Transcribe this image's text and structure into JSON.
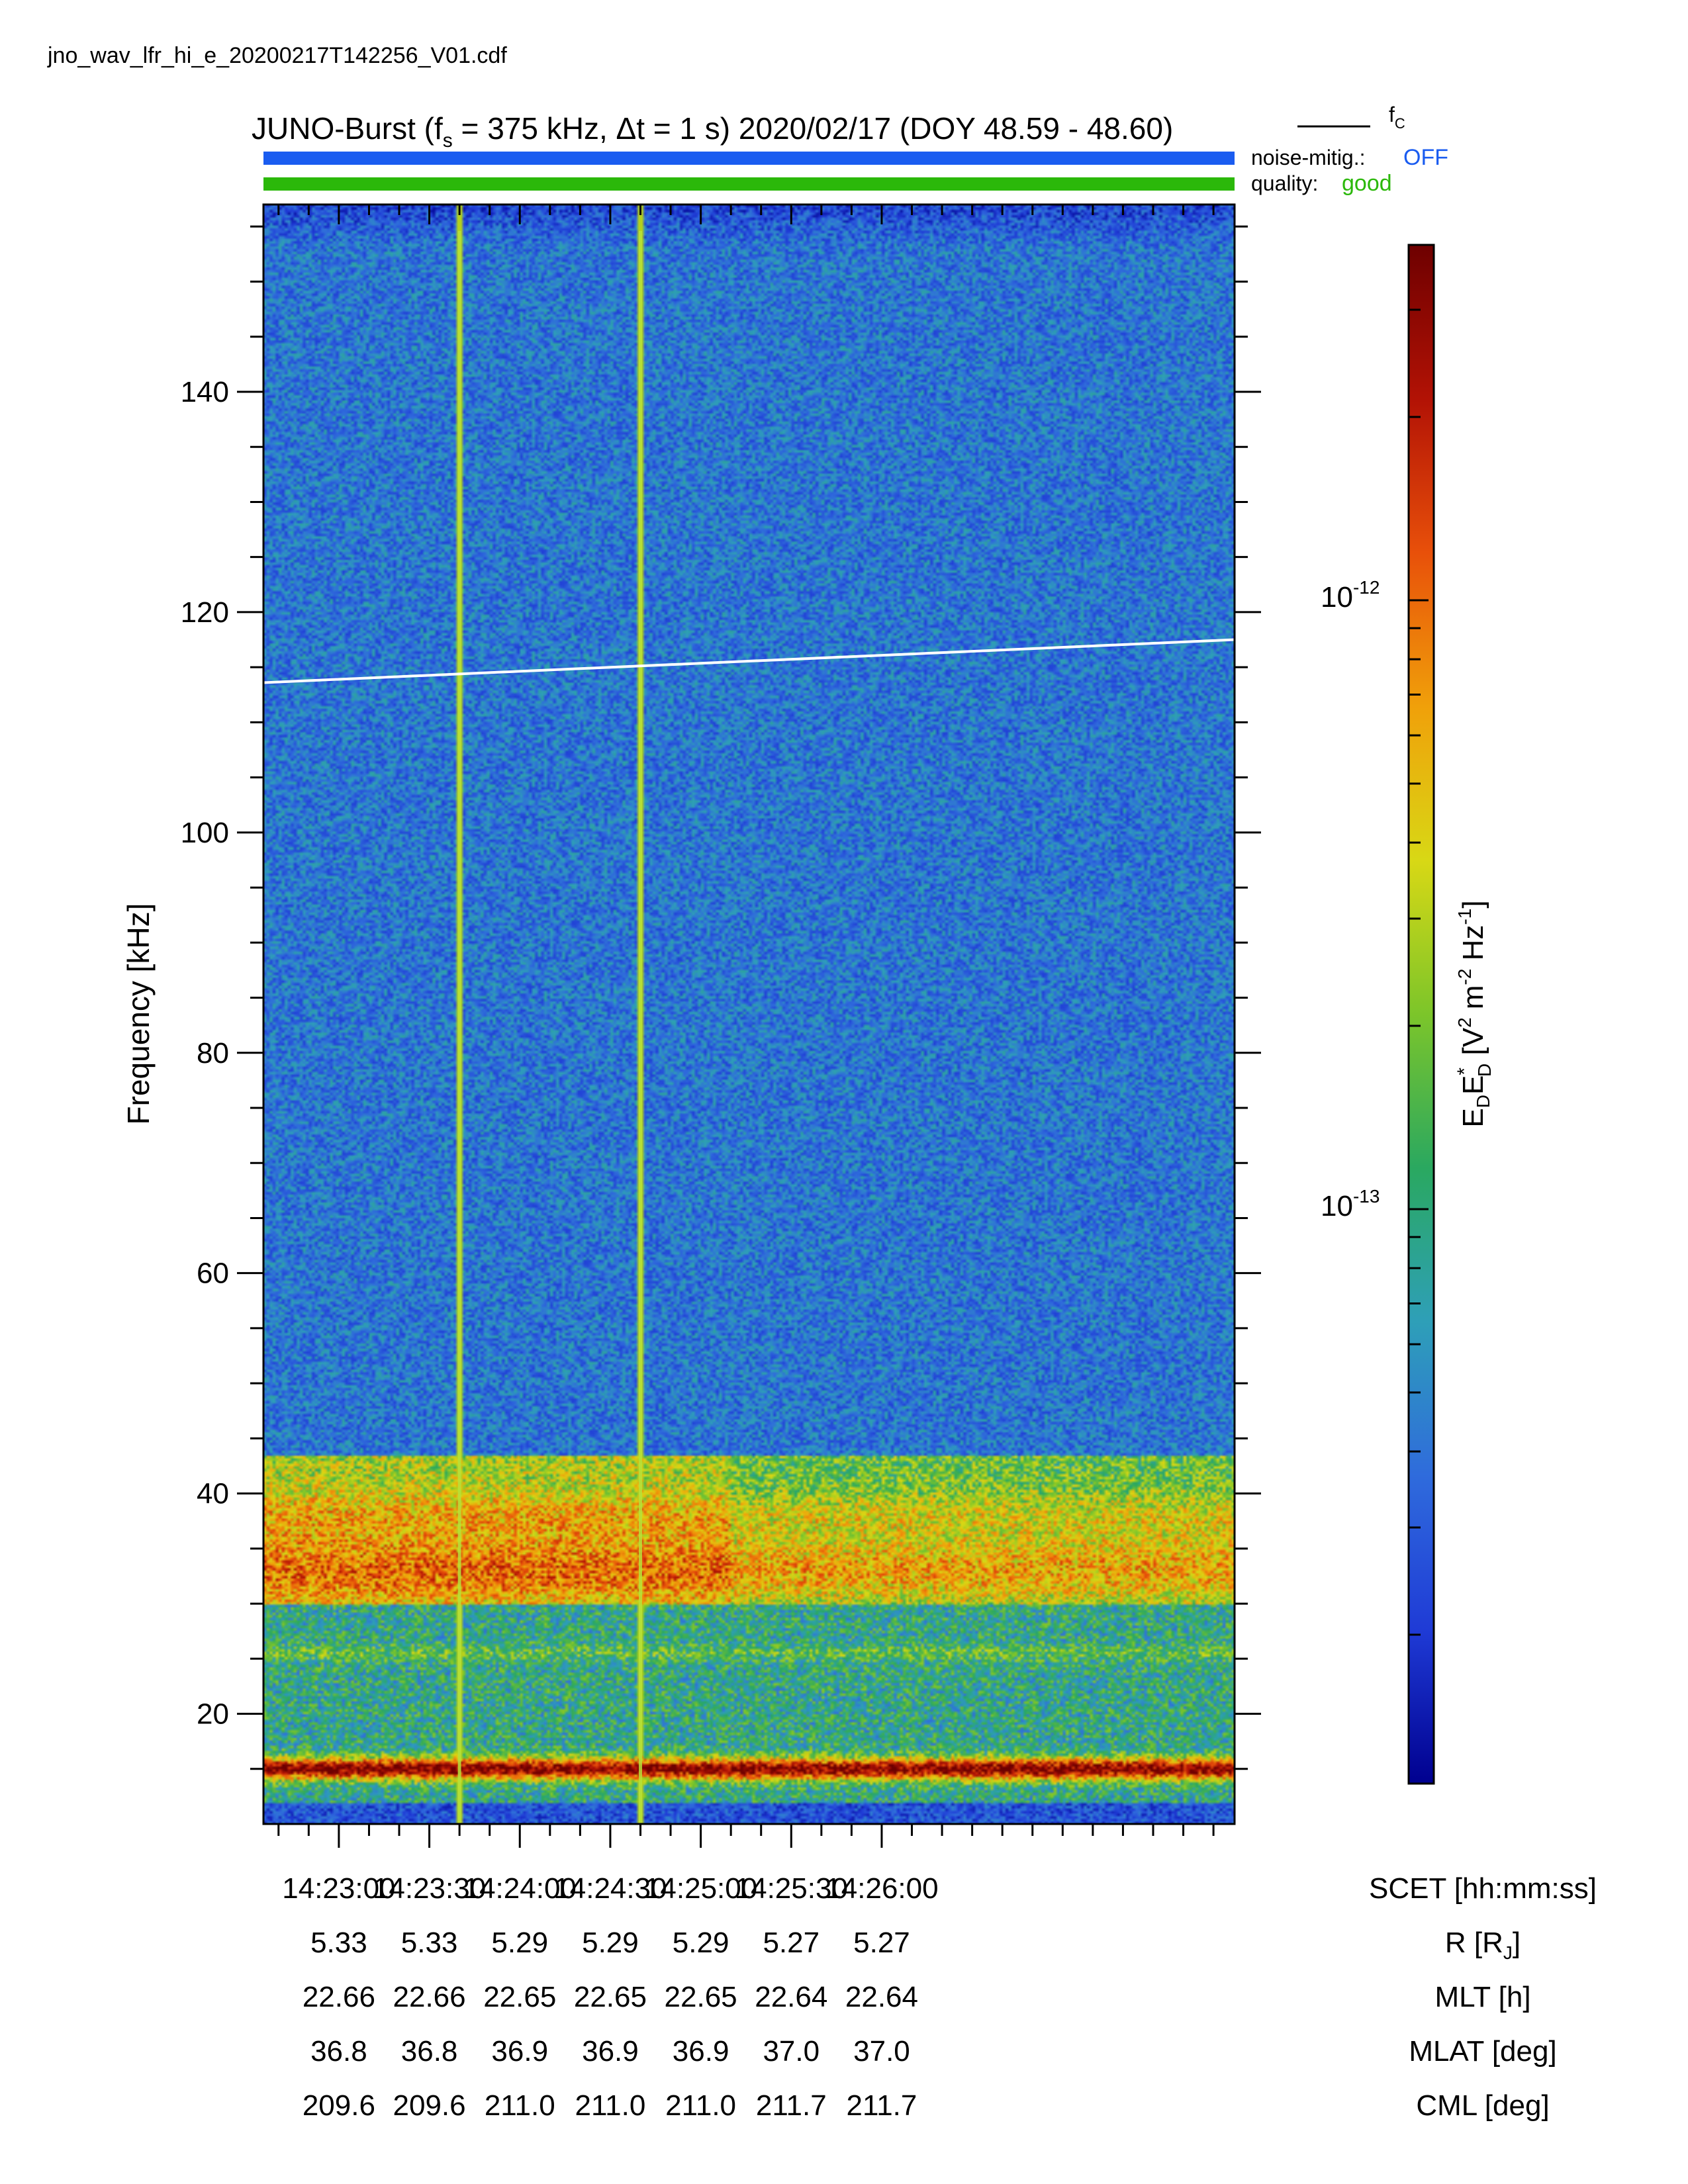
{
  "filename": "jno_wav_lfr_hi_e_20200217T142256_V01.cdf",
  "title": {
    "prefix": "JUNO-Burst (f",
    "fs_sub": "s",
    "fs_value": " = 375 kHz, Δt = 1 s)  2020/02/17 (DOY 48.59 - 48.60)"
  },
  "legend": {
    "fc_label": "f",
    "fc_sub": "C",
    "noise_label": "noise-mitig.:",
    "noise_value": "OFF",
    "quality_label": "quality:",
    "quality_value": "good"
  },
  "colors": {
    "noise_bar": "#1a5cf0",
    "quality_bar": "#2bb80a",
    "noise_value": "#1a5cf0",
    "quality_value": "#2bb80a",
    "fc_line": "#ffffff"
  },
  "chart_data": {
    "type": "heatmap",
    "ylabel": "Frequency [kHz]",
    "ylim": [
      10,
      157
    ],
    "yticks": [
      20,
      40,
      60,
      80,
      100,
      120,
      140
    ],
    "ytick_labels": [
      "20",
      "40",
      "60",
      "80",
      "100",
      "120",
      "140"
    ],
    "xlim_seconds": [
      -25,
      297
    ],
    "xticks_seconds": [
      0,
      30,
      60,
      90,
      120,
      150,
      180
    ],
    "x_tick_labels": [
      "14:23:00",
      "14:23:30",
      "14:24:00",
      "14:24:30",
      "14:25:00",
      "14:25:30",
      "14:26:00"
    ],
    "fc_line_khz": [
      113.6,
      117.5
    ],
    "vertical_lines_seconds": [
      40,
      100
    ],
    "colorbar": {
      "label": "E₀E₀* [V² m⁻² Hz⁻¹]",
      "label_main": "E",
      "label_sub1": "D",
      "label_mid": "E",
      "label_sup_star": "*",
      "label_sub2": "D",
      "label_rest": " [V",
      "label_sup2": "2",
      "label_m": " m",
      "label_sup_m2": "-2",
      "label_hz": " Hz",
      "label_sup_m1": "-1",
      "label_end": "]",
      "tick_labels": [
        {
          "base": "10",
          "exp": "-12"
        },
        {
          "base": "10",
          "exp": "-13"
        }
      ],
      "colormap": [
        "#00008f",
        "#1f3bd6",
        "#2f6bdc",
        "#2e9fb8",
        "#2aa860",
        "#7cc52a",
        "#d8d815",
        "#f0a00a",
        "#e8500a",
        "#b21205",
        "#6e0000"
      ]
    },
    "ephemeris": {
      "rows": [
        {
          "label": "SCET [hh:mm:ss]",
          "values": [
            "14:23:00",
            "14:23:30",
            "14:24:00",
            "14:24:30",
            "14:25:00",
            "14:25:30",
            "14:26:00"
          ]
        },
        {
          "label": "R [R",
          "label_sub": "J",
          "label_end": "]",
          "values": [
            "5.33",
            "5.33",
            "5.29",
            "5.29",
            "5.29",
            "5.27",
            "5.27"
          ]
        },
        {
          "label": "MLT [h]",
          "values": [
            "22.66",
            "22.66",
            "22.65",
            "22.65",
            "22.65",
            "22.64",
            "22.64"
          ]
        },
        {
          "label": "MLAT [deg]",
          "values": [
            "36.8",
            "36.8",
            "36.9",
            "36.9",
            "36.9",
            "37.0",
            "37.0"
          ]
        },
        {
          "label": "CML [deg]",
          "values": [
            "209.6",
            "209.6",
            "211.0",
            "211.0",
            "211.0",
            "211.7",
            "211.7"
          ]
        }
      ]
    }
  }
}
